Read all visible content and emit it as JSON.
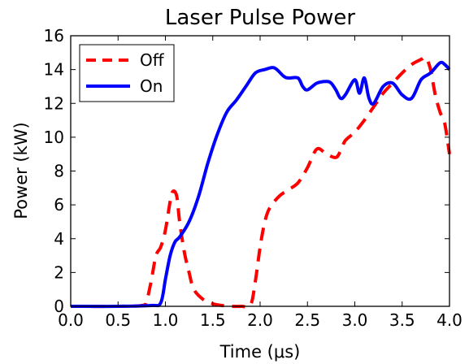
{
  "chart_data": {
    "type": "line",
    "title": "Laser Pulse Power",
    "xlabel": "Time (μs)",
    "ylabel": "Power (kW)",
    "xlim": [
      0.0,
      4.0
    ],
    "ylim": [
      0,
      16
    ],
    "xticks": [
      "0.0",
      "0.5",
      "1.0",
      "1.5",
      "2.0",
      "2.5",
      "3.0",
      "3.5",
      "4.0"
    ],
    "yticks": [
      "0",
      "2",
      "4",
      "6",
      "8",
      "10",
      "12",
      "14",
      "16"
    ],
    "legend_position": "top-left",
    "grid": false,
    "series": [
      {
        "name": "Off",
        "color": "#ff0000",
        "style": "dashed",
        "x": [
          0.0,
          0.5,
          0.75,
          0.8,
          0.85,
          0.9,
          0.95,
          1.0,
          1.05,
          1.08,
          1.12,
          1.15,
          1.2,
          1.25,
          1.3,
          1.4,
          1.5,
          1.6,
          1.7,
          1.8,
          1.9,
          1.95,
          2.0,
          2.05,
          2.1,
          2.2,
          2.3,
          2.4,
          2.5,
          2.6,
          2.7,
          2.8,
          2.85,
          2.9,
          3.0,
          3.1,
          3.2,
          3.3,
          3.4,
          3.5,
          3.6,
          3.7,
          3.75,
          3.8,
          3.85,
          3.9,
          3.95,
          4.0
        ],
        "y": [
          0.0,
          0.0,
          0.05,
          0.3,
          1.5,
          3.0,
          3.5,
          4.5,
          6.2,
          6.8,
          6.5,
          5.0,
          3.2,
          2.0,
          1.0,
          0.4,
          0.15,
          0.05,
          0.0,
          0.0,
          0.1,
          1.5,
          3.5,
          5.0,
          5.8,
          6.5,
          6.9,
          7.3,
          8.2,
          9.3,
          9.0,
          8.8,
          9.2,
          9.8,
          10.3,
          11.0,
          11.8,
          12.6,
          13.2,
          13.8,
          14.3,
          14.6,
          14.7,
          14.0,
          12.5,
          11.5,
          10.8,
          9.0
        ]
      },
      {
        "name": "On",
        "color": "#0000ff",
        "style": "solid",
        "x": [
          0.0,
          0.5,
          0.85,
          0.95,
          1.0,
          1.05,
          1.1,
          1.15,
          1.25,
          1.35,
          1.45,
          1.55,
          1.65,
          1.75,
          1.85,
          1.95,
          2.05,
          2.15,
          2.25,
          2.3,
          2.4,
          2.45,
          2.5,
          2.6,
          2.7,
          2.75,
          2.8,
          2.85,
          2.9,
          3.0,
          3.05,
          3.1,
          3.15,
          3.2,
          3.3,
          3.4,
          3.5,
          3.6,
          3.7,
          3.8,
          3.9,
          3.95,
          4.0
        ],
        "y": [
          0.0,
          0.0,
          0.05,
          0.2,
          1.6,
          3.0,
          3.8,
          4.1,
          5.0,
          6.5,
          8.5,
          10.2,
          11.5,
          12.2,
          13.0,
          13.8,
          14.0,
          14.1,
          13.6,
          13.5,
          13.5,
          13.0,
          12.8,
          13.2,
          13.3,
          13.2,
          12.8,
          12.3,
          12.5,
          13.4,
          12.6,
          13.5,
          12.3,
          12.0,
          13.0,
          13.2,
          12.5,
          12.3,
          13.4,
          13.8,
          14.4,
          14.3,
          14.0
        ]
      }
    ]
  }
}
